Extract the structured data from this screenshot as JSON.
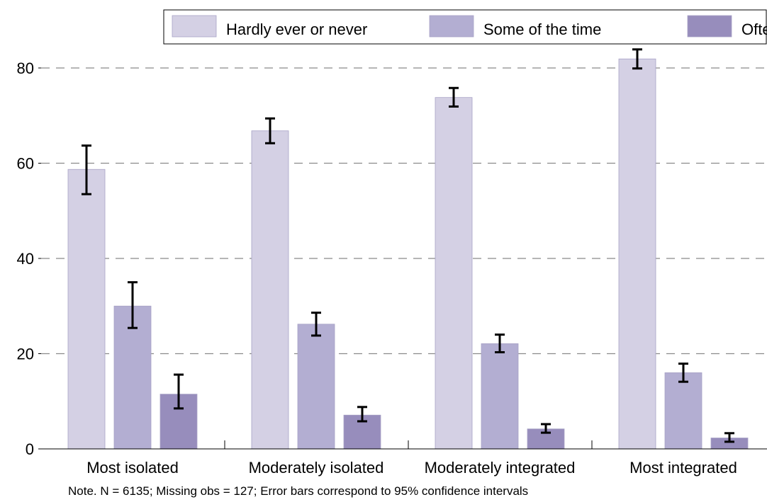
{
  "chart_data": {
    "type": "bar",
    "title": "",
    "xlabel": "",
    "ylabel": "",
    "ylim": [
      0,
      80
    ],
    "yticks": [
      0,
      20,
      40,
      60,
      80
    ],
    "grid": "y-dashed",
    "legend_position": "top",
    "categories": [
      "Most isolated",
      "Moderately isolated",
      "Moderately integrated",
      "Most integrated"
    ],
    "series": [
      {
        "name": "Hardly ever or never",
        "color": "#d4d0e4",
        "values": [
          58.7,
          66.8,
          73.8,
          81.9
        ],
        "ci_low": [
          53.5,
          64.2,
          71.9,
          79.9
        ],
        "ci_high": [
          63.7,
          69.4,
          75.8,
          83.9
        ]
      },
      {
        "name": "Some of the time",
        "color": "#b3aed2",
        "values": [
          30.0,
          26.2,
          22.1,
          16.0
        ],
        "ci_low": [
          25.4,
          23.8,
          20.3,
          14.1
        ],
        "ci_high": [
          35.0,
          28.6,
          24.0,
          17.9
        ]
      },
      {
        "name": "Often",
        "color": "#978dbc",
        "values": [
          11.5,
          7.1,
          4.2,
          2.3
        ],
        "ci_low": [
          8.5,
          5.8,
          3.4,
          1.5
        ],
        "ci_high": [
          15.6,
          8.8,
          5.2,
          3.3
        ]
      }
    ],
    "note": "Note. N = 6135; Missing obs = 127; Error bars correspond to 95% confidence intervals"
  }
}
